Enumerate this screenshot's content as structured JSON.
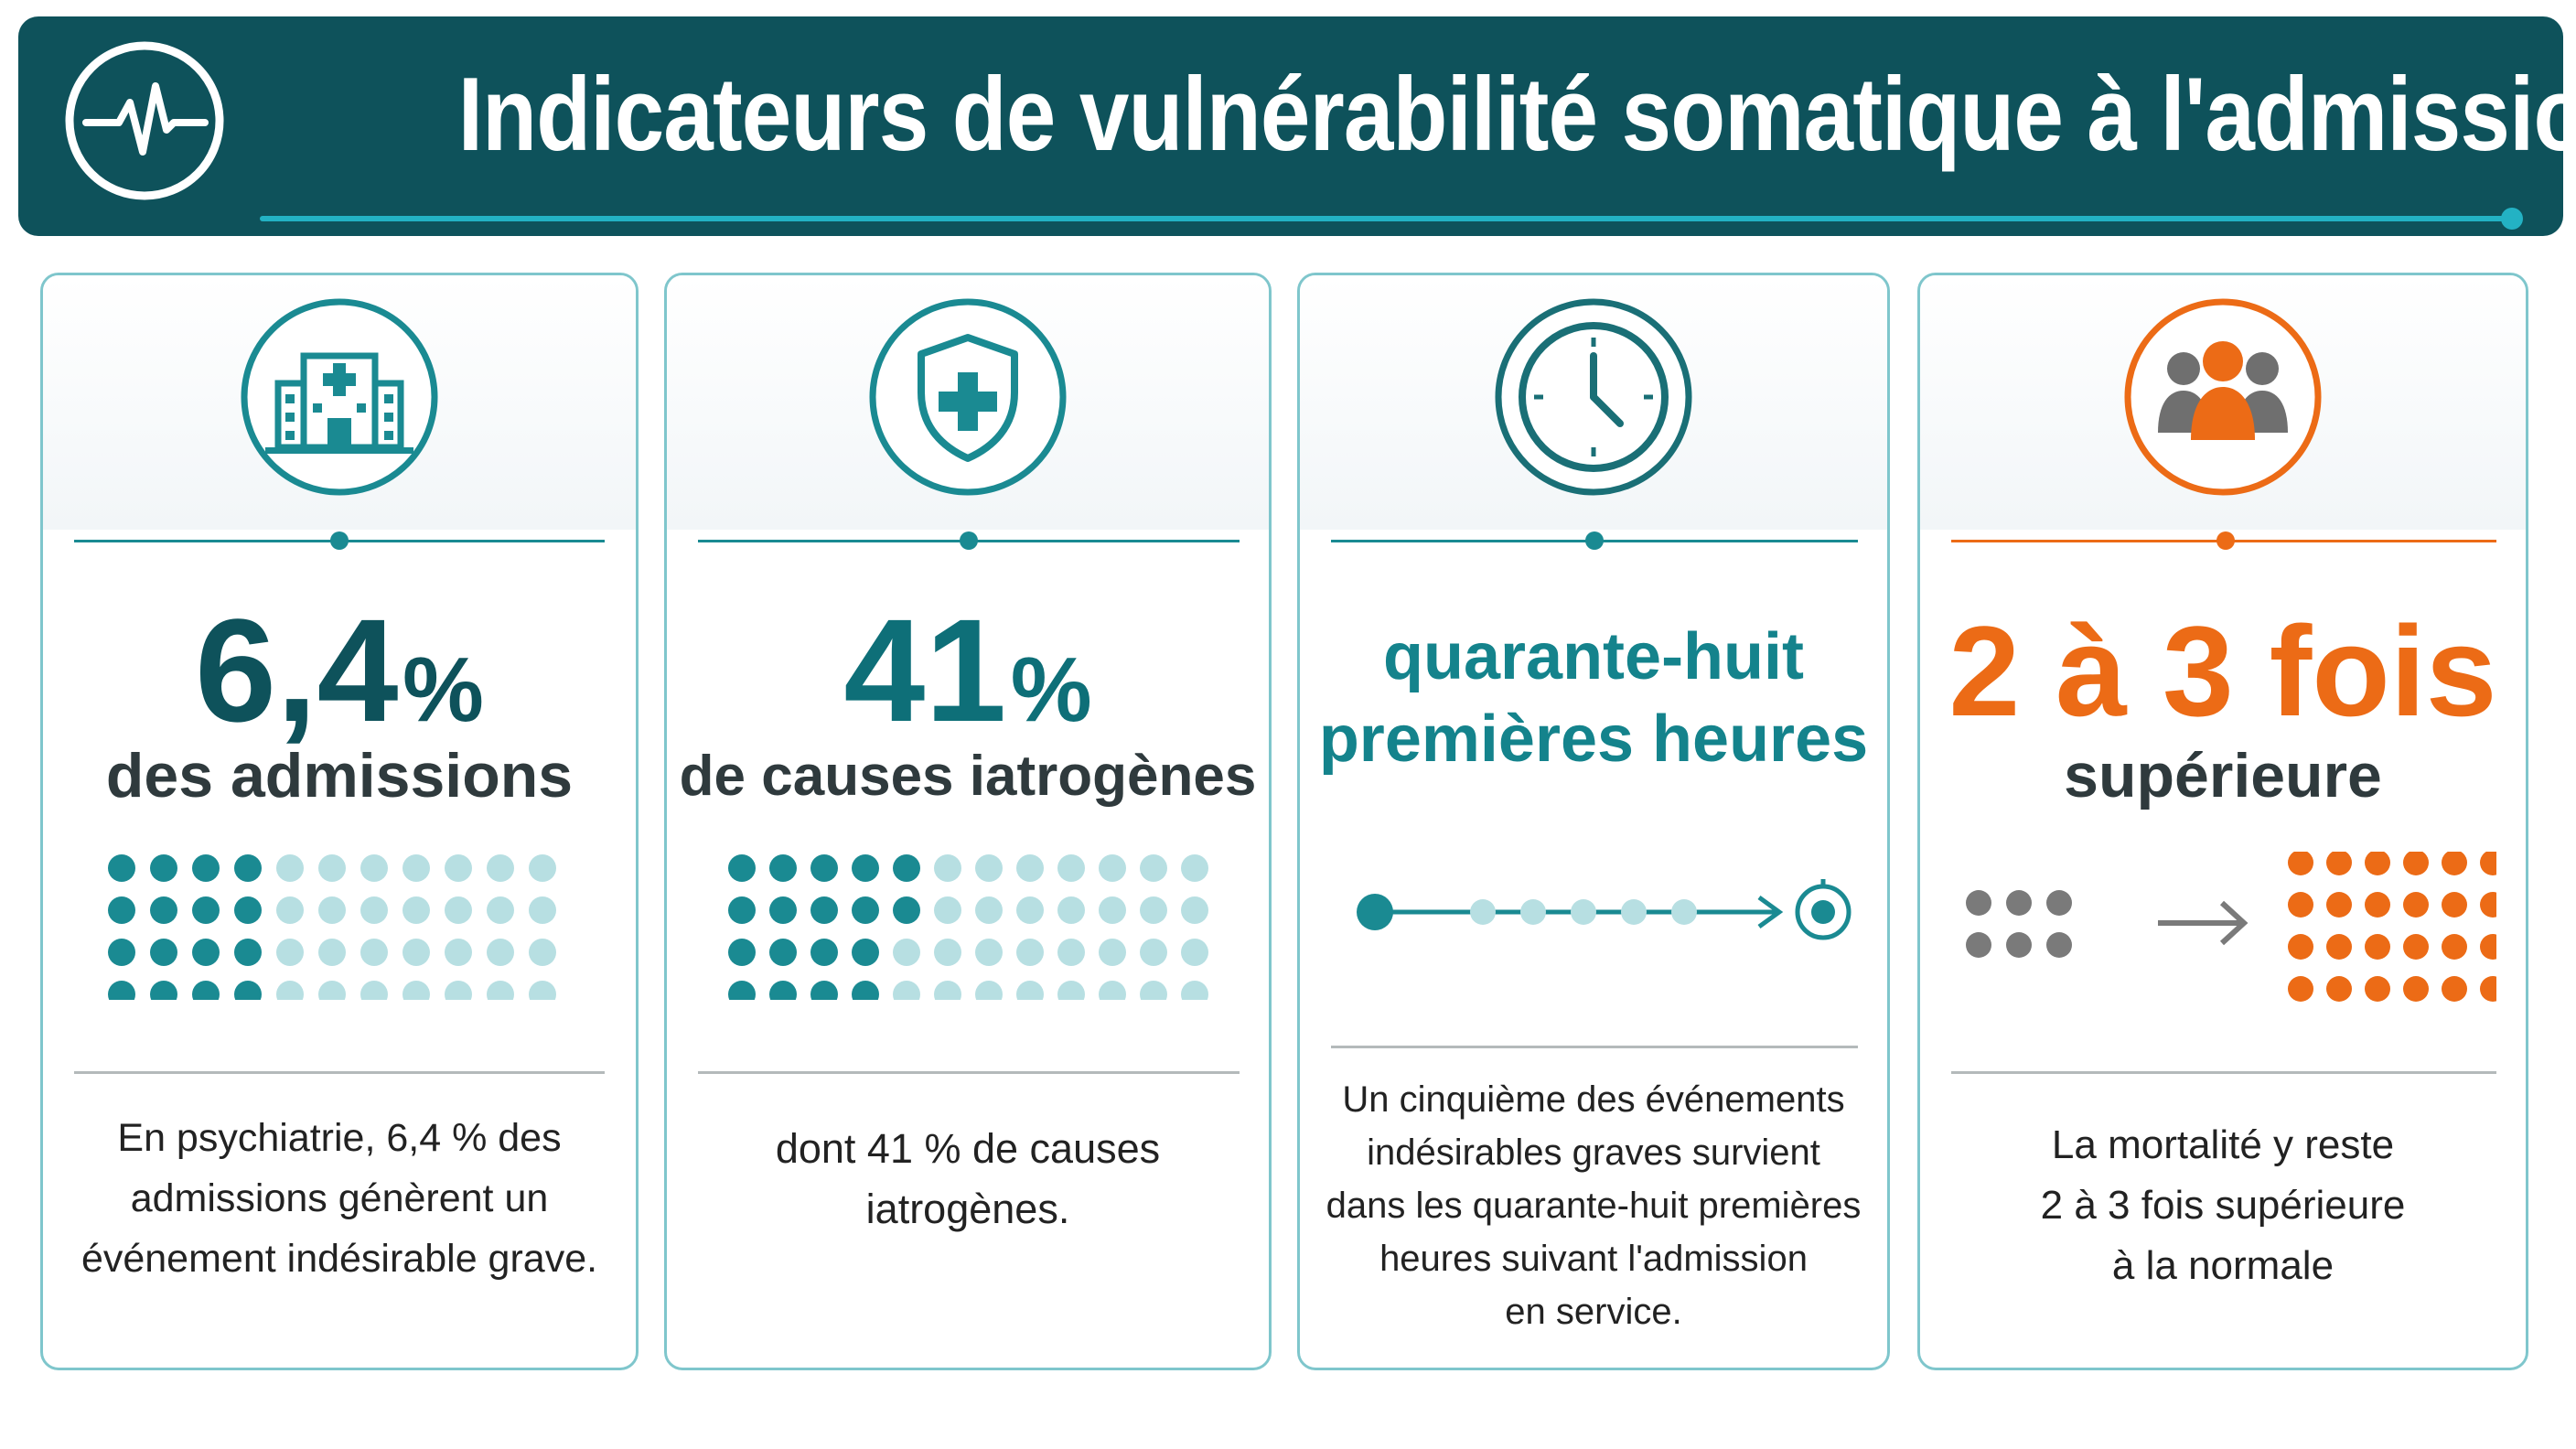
{
  "header": {
    "title": "Indicateurs de vulnérabilité somatique à l'admission",
    "icon": "heartbeat-icon"
  },
  "colors": {
    "header_bg": "#0e525b",
    "accent_teal": "#23b2c4",
    "dark_teal": "#0e525b",
    "mid_teal": "#1a8a92",
    "light_teal": "#b7dfe2",
    "orange": "#ec6b16",
    "gray": "#7a7a7a"
  },
  "cards": [
    {
      "icon": "hospital-icon",
      "value": "6,4",
      "unit": "%",
      "label": "des admissions",
      "description": [
        "En psychiatrie, 6,4 % des",
        "admissions génèrent un",
        "événement indésirable grave."
      ],
      "filled_dots": 16,
      "total_dots": 44
    },
    {
      "icon": "shield-plus-icon",
      "value": "41",
      "unit": "%",
      "label": "de causes iatrogènes",
      "description": [
        "dont 41 % de causes",
        "iatrogènes."
      ],
      "filled_dots": 18,
      "total_dots": 48
    },
    {
      "icon": "clock-icon",
      "value_lines": [
        "quarante-huit",
        "premières heures"
      ],
      "description": [
        "Un cinquième des événements",
        "indésirables graves survient",
        "dans les quarante-huit premières",
        "heures suivant l'admission",
        "en service."
      ],
      "timeline_steps": 5
    },
    {
      "icon": "group-people-icon",
      "value": "2 à 3 fois",
      "label": "supérieure",
      "description": [
        "La mortalité y reste",
        "2 à 3 fois supérieure",
        "à la normale"
      ],
      "before_dots": 6,
      "after_dots": 24
    }
  ]
}
